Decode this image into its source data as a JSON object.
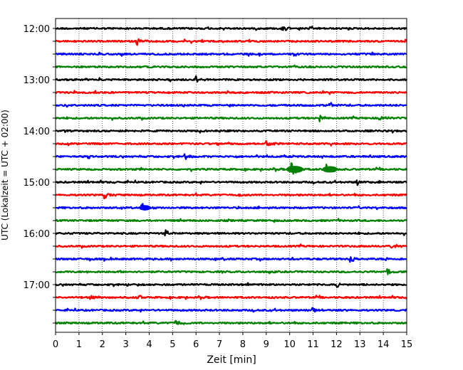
{
  "chart_data": {
    "type": "line",
    "title": "",
    "xlabel": "Zeit  [min]",
    "ylabel": "UTC (Lokalzeit = UTC + 02:00)",
    "xlim": [
      0,
      15
    ],
    "x_ticks": [
      0,
      1,
      2,
      3,
      4,
      5,
      6,
      7,
      8,
      9,
      10,
      11,
      12,
      13,
      14,
      15
    ],
    "x_tick_labels": [
      "0",
      "1",
      "2",
      "3",
      "4",
      "5",
      "6",
      "7",
      "8",
      "9",
      "10",
      "11",
      "12",
      "13",
      "14",
      "15"
    ],
    "y_tick_labels": [
      "12:00",
      "13:00",
      "14:00",
      "15:00",
      "16:00",
      "17:00"
    ],
    "trace_interval_minutes": 15,
    "start_time": "12:00",
    "end_time": "17:45",
    "grid": "vertical dotted",
    "trace_colors": [
      "#000000",
      "#ff0000",
      "#0000ff",
      "#008000"
    ],
    "series": [
      {
        "start": "12:00",
        "color": "#000000",
        "events": [
          {
            "x": 9.7,
            "amp": 1.5
          }
        ]
      },
      {
        "start": "12:15",
        "color": "#ff0000",
        "events": [
          {
            "x": 3.5,
            "amp": 1.4
          }
        ]
      },
      {
        "start": "12:30",
        "color": "#0000ff",
        "events": []
      },
      {
        "start": "12:45",
        "color": "#008000",
        "events": []
      },
      {
        "start": "13:00",
        "color": "#000000",
        "events": [
          {
            "x": 6.0,
            "amp": 1.6
          }
        ]
      },
      {
        "start": "13:15",
        "color": "#ff0000",
        "events": []
      },
      {
        "start": "13:30",
        "color": "#0000ff",
        "events": [
          {
            "x": 11.7,
            "amp": 1.3
          }
        ]
      },
      {
        "start": "13:45",
        "color": "#008000",
        "events": [
          {
            "x": 11.3,
            "amp": 1.3
          },
          {
            "x": 13.8,
            "amp": 1.2
          }
        ]
      },
      {
        "start": "14:00",
        "color": "#000000",
        "events": []
      },
      {
        "start": "14:15",
        "color": "#ff0000",
        "events": [
          {
            "x": 9.0,
            "amp": 1.2
          }
        ]
      },
      {
        "start": "14:30",
        "color": "#0000ff",
        "events": [
          {
            "x": 5.5,
            "amp": 1.3
          }
        ]
      },
      {
        "start": "14:45",
        "color": "#008000",
        "events": [
          {
            "x": 10.1,
            "amp": 3.2
          },
          {
            "x": 11.6,
            "amp": 2.8
          }
        ]
      },
      {
        "start": "15:00",
        "color": "#000000",
        "events": [
          {
            "x": 12.9,
            "amp": 1.2
          }
        ]
      },
      {
        "start": "15:15",
        "color": "#ff0000",
        "events": [
          {
            "x": 2.1,
            "amp": 1.4
          }
        ]
      },
      {
        "start": "15:30",
        "color": "#0000ff",
        "events": [
          {
            "x": 3.7,
            "amp": 2.0
          }
        ]
      },
      {
        "start": "15:45",
        "color": "#008000",
        "events": []
      },
      {
        "start": "16:00",
        "color": "#000000",
        "events": [
          {
            "x": 4.7,
            "amp": 1.4
          }
        ]
      },
      {
        "start": "16:15",
        "color": "#ff0000",
        "events": [
          {
            "x": 14.3,
            "amp": 1.2
          }
        ]
      },
      {
        "start": "16:30",
        "color": "#0000ff",
        "events": [
          {
            "x": 12.6,
            "amp": 1.4
          }
        ]
      },
      {
        "start": "16:45",
        "color": "#008000",
        "events": [
          {
            "x": 14.2,
            "amp": 1.1
          }
        ]
      },
      {
        "start": "17:00",
        "color": "#000000",
        "events": [
          {
            "x": 12.0,
            "amp": 1.2
          }
        ]
      },
      {
        "start": "17:15",
        "color": "#ff0000",
        "events": [
          {
            "x": 1.5,
            "amp": 1.3
          },
          {
            "x": 3.5,
            "amp": 1.2
          }
        ]
      },
      {
        "start": "17:30",
        "color": "#0000ff",
        "events": [
          {
            "x": 11.0,
            "amp": 1.1
          }
        ]
      },
      {
        "start": "17:45",
        "color": "#008000",
        "events": [
          {
            "x": 5.1,
            "amp": 1.2
          }
        ]
      }
    ]
  }
}
